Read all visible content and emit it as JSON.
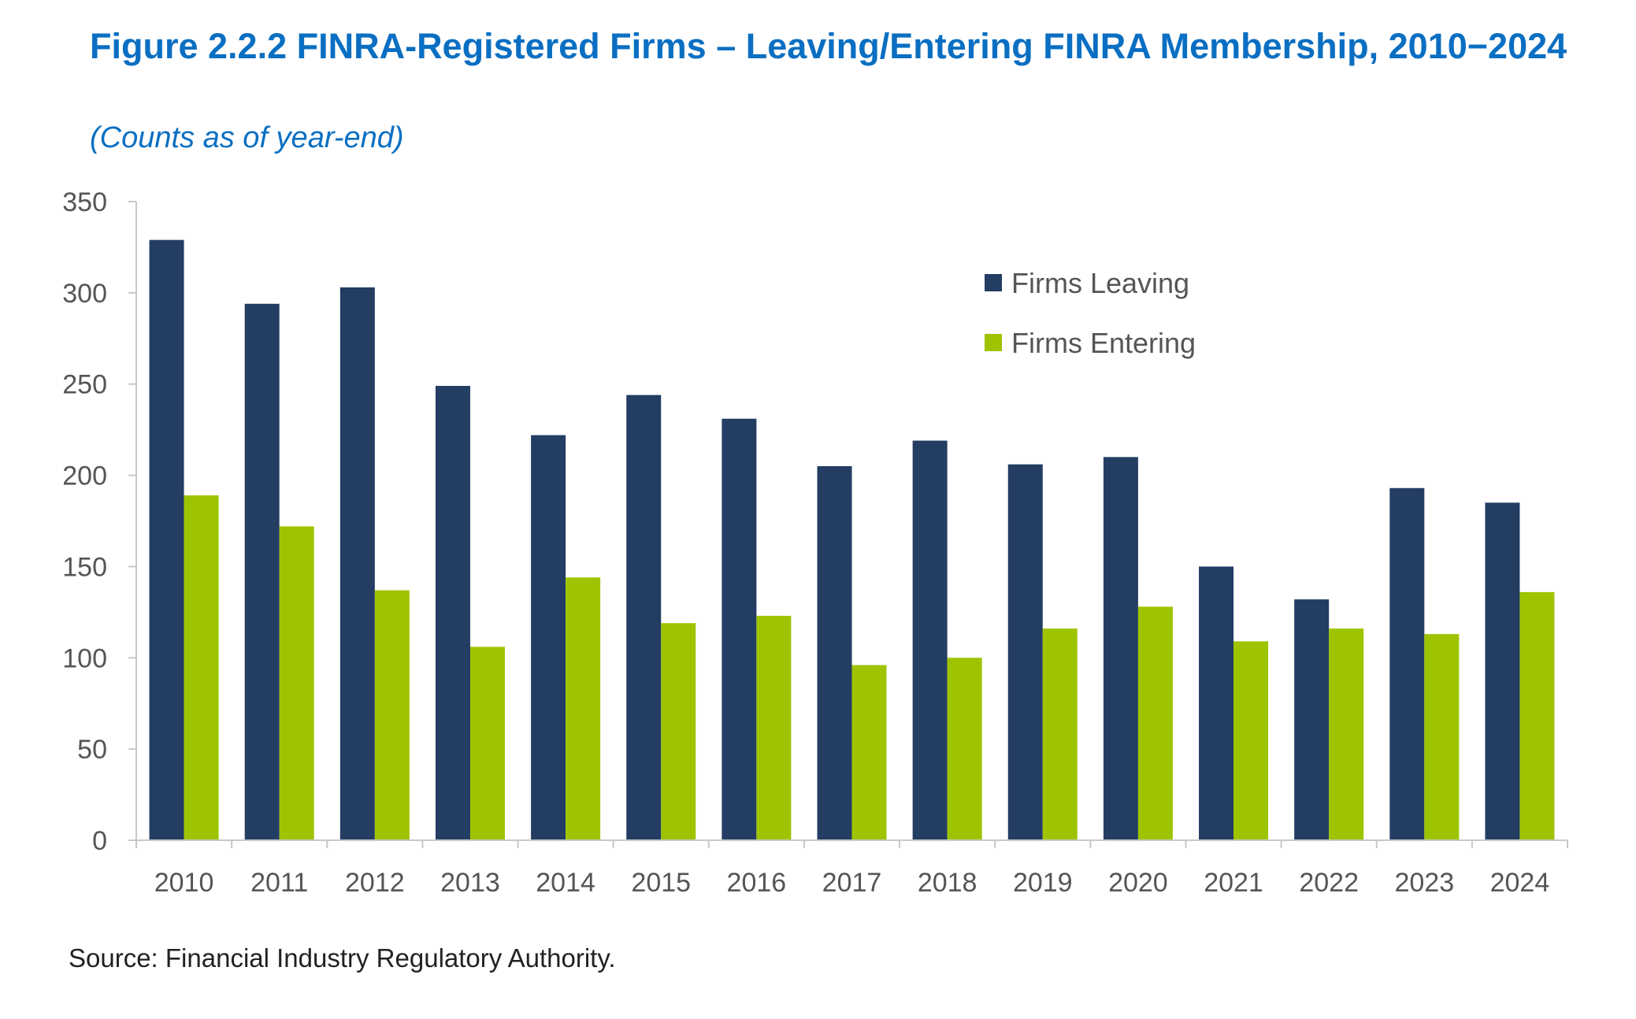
{
  "title": "Figure 2.2.2 FINRA-Registered Firms – Leaving/Entering FINRA Membership, 2010−2024",
  "subtitle": "(Counts as of year-end)",
  "source": "Source: Financial Industry Regulatory Authority.",
  "colors": {
    "leaving": "#233d63",
    "entering": "#9ec400",
    "axis": "#c8c8c8"
  },
  "chart_data": {
    "type": "bar",
    "title": "Figure 2.2.2 FINRA-Registered Firms – Leaving/Entering FINRA Membership, 2010−2024",
    "subtitle": "(Counts as of year-end)",
    "xlabel": "",
    "ylabel": "",
    "ylim": [
      0,
      350
    ],
    "yticks": [
      "0",
      "50",
      "100",
      "150",
      "200",
      "250",
      "300",
      "350"
    ],
    "grid": false,
    "legend_position": "top-right",
    "categories": [
      "2010",
      "2011",
      "2012",
      "2013",
      "2014",
      "2015",
      "2016",
      "2017",
      "2018",
      "2019",
      "2020",
      "2021",
      "2022",
      "2023",
      "2024"
    ],
    "series": [
      {
        "name": "Firms Leaving",
        "color": "#233d63",
        "values": [
          329,
          294,
          303,
          249,
          222,
          244,
          231,
          205,
          219,
          206,
          210,
          150,
          132,
          193,
          185
        ]
      },
      {
        "name": "Firms Entering",
        "color": "#9ec400",
        "values": [
          189,
          172,
          137,
          106,
          144,
          119,
          123,
          96,
          100,
          116,
          128,
          109,
          116,
          113,
          136
        ]
      }
    ]
  }
}
